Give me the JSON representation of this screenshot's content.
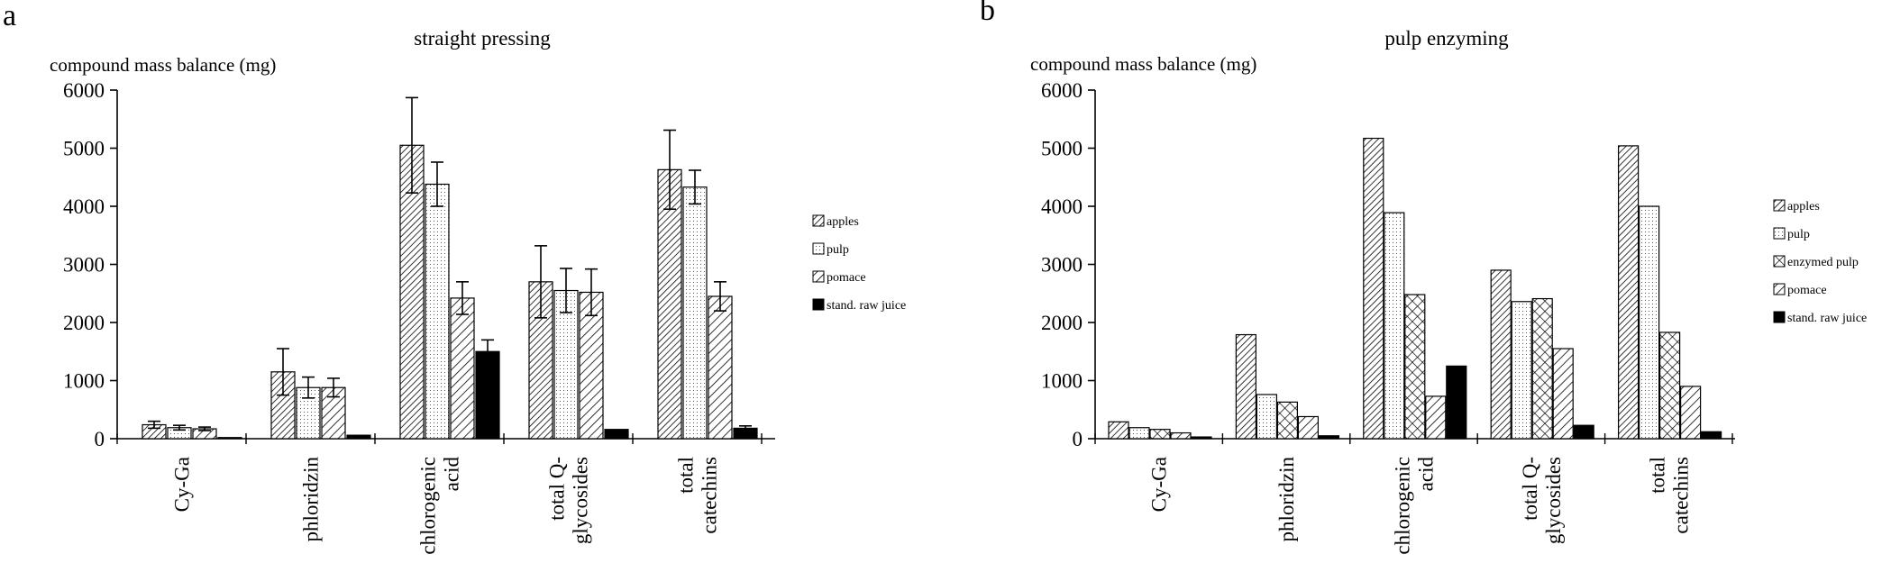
{
  "chart_data": [
    {
      "type": "bar",
      "panel": "a",
      "title": "straight pressing",
      "ylabel": "compound mass balance (mg)",
      "ylim": [
        0,
        6000
      ],
      "yticks": [
        0,
        1000,
        2000,
        3000,
        4000,
        5000,
        6000
      ],
      "error_bars": true,
      "legend_position": "right",
      "categories": [
        [
          "Cy-Ga"
        ],
        [
          "phloridzin"
        ],
        [
          "chlorogenic",
          "acid"
        ],
        [
          "total Q-",
          "glycosides"
        ],
        [
          "total",
          "catechins"
        ]
      ],
      "series": [
        {
          "name": "apples",
          "pattern": "diag-dense",
          "values": [
            240,
            1150,
            5050,
            2700,
            4630
          ],
          "errors": [
            60,
            400,
            820,
            620,
            680
          ]
        },
        {
          "name": "pulp",
          "pattern": "dots",
          "values": [
            190,
            880,
            4380,
            2550,
            4330
          ],
          "errors": [
            40,
            180,
            380,
            380,
            290
          ]
        },
        {
          "name": "pomace",
          "pattern": "diag-sparse",
          "values": [
            170,
            880,
            2420,
            2520,
            2450
          ],
          "errors": [
            30,
            160,
            280,
            400,
            250
          ]
        },
        {
          "name": "stand. raw juice",
          "pattern": "solid",
          "values": [
            20,
            60,
            1500,
            160,
            180
          ],
          "errors": [
            0,
            0,
            200,
            0,
            40
          ]
        }
      ]
    },
    {
      "type": "bar",
      "panel": "b",
      "title": "pulp enzyming",
      "ylabel": "compound mass balance (mg)",
      "ylim": [
        0,
        6000
      ],
      "yticks": [
        0,
        1000,
        2000,
        3000,
        4000,
        5000,
        6000
      ],
      "error_bars": false,
      "legend_position": "right",
      "categories": [
        [
          "Cy-Ga"
        ],
        [
          "phloridzin"
        ],
        [
          "chlorogenic",
          "acid"
        ],
        [
          "total Q-",
          "glycosides"
        ],
        [
          "total",
          "catechins"
        ]
      ],
      "series": [
        {
          "name": "apples",
          "pattern": "diag-dense",
          "values": [
            290,
            1790,
            5170,
            2900,
            5040
          ]
        },
        {
          "name": "pulp",
          "pattern": "dots",
          "values": [
            190,
            760,
            3890,
            2360,
            4000
          ]
        },
        {
          "name": "enzymed pulp",
          "pattern": "crosshatch",
          "values": [
            160,
            630,
            2480,
            2410,
            1830
          ]
        },
        {
          "name": "pomace",
          "pattern": "diag-sparse",
          "values": [
            100,
            380,
            730,
            1550,
            900
          ]
        },
        {
          "name": "stand. raw juice",
          "pattern": "solid",
          "values": [
            30,
            50,
            1250,
            230,
            120
          ]
        }
      ]
    }
  ]
}
